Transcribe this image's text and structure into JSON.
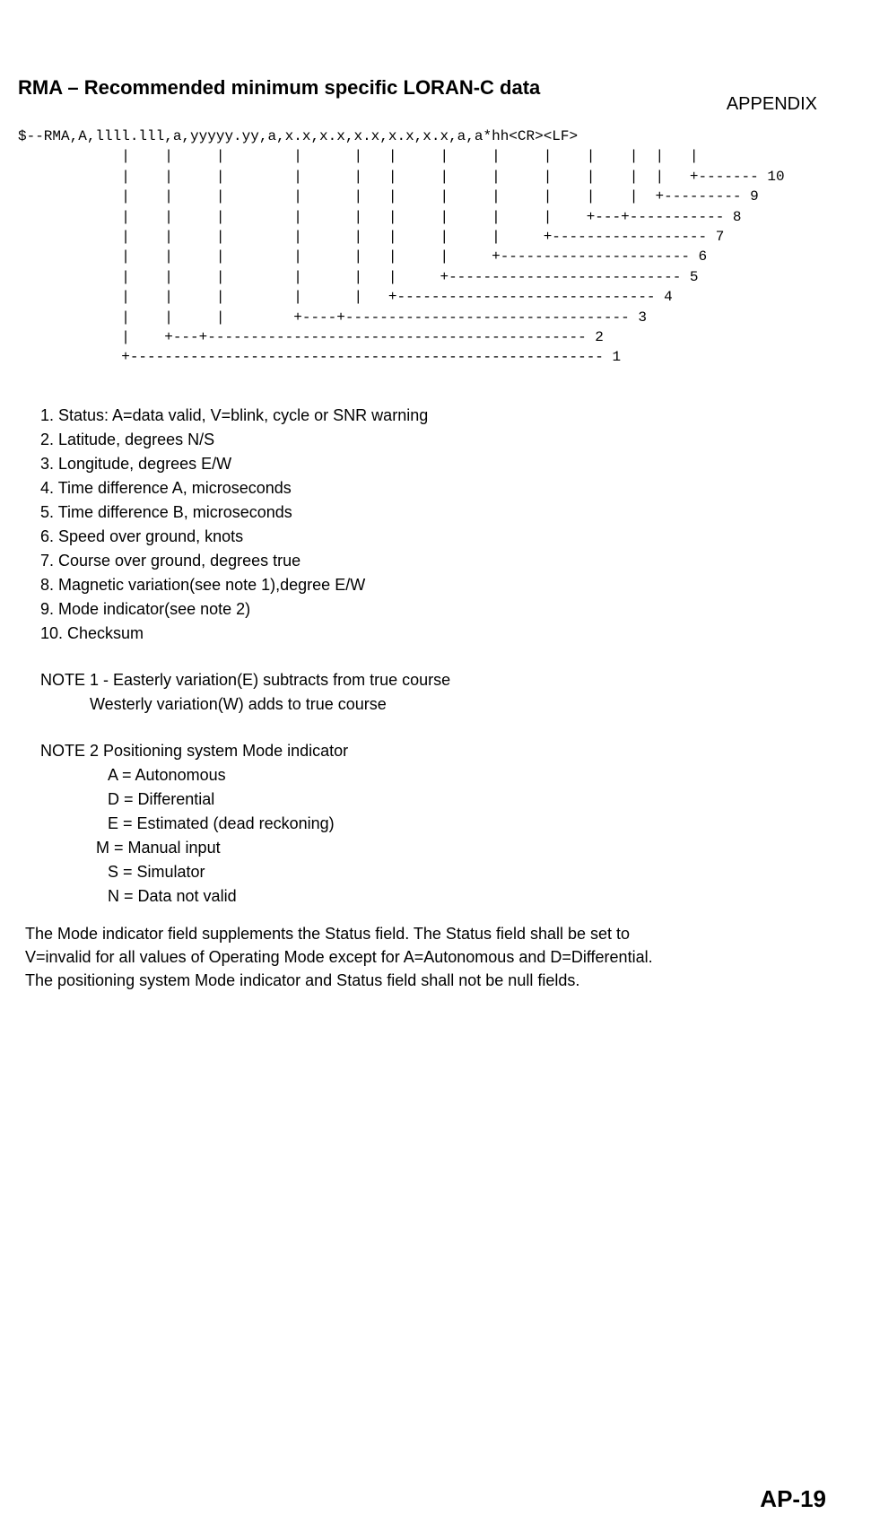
{
  "header": {
    "label": "APPENDIX"
  },
  "title": "RMA – Recommended minimum specific LORAN-C data",
  "sentence": "$--RMA,A,llll.lll,a,yyyyy.yy,a,x.x,x.x,x.x,x.x,x.x,a,a*hh<CR><LF>",
  "tree": {
    "l01": "            |    |     |        |      |   |     |     |     |    |    |  |   |",
    "l02": "            |    |     |        |      |   |     |     |     |    |    |  |   +------- 10",
    "l03": "            |    |     |        |      |   |     |     |     |    |    |  +--------- 9",
    "l04": "            |    |     |        |      |   |     |     |     |    +---+----------- 8",
    "l05": "            |    |     |        |      |   |     |     |     +------------------ 7",
    "l06": "            |    |     |        |      |   |     |     +---------------------- 6",
    "l07": "            |    |     |        |      |   |     +--------------------------- 5",
    "l08": "            |    |     |        |      |   +------------------------------ 4",
    "l09": "            |    |     |        +----+--------------------------------- 3",
    "l10": "            |    +---+-------------------------------------------- 2",
    "l11": "            +------------------------------------------------------- 1"
  },
  "fields": {
    "f1": "1. Status: A=data valid, V=blink, cycle or SNR warning",
    "f2": "2. Latitude, degrees N/S",
    "f3": "3. Longitude, degrees E/W",
    "f4": "4. Time difference A, microseconds",
    "f5": "5. Time difference B, microseconds",
    "f6": "6. Speed over ground, knots",
    "f7": "7. Course over ground, degrees true",
    "f8": "8. Magnetic variation(see note 1),degree E/W",
    "f9": "9. Mode indicator(see note 2)",
    "f10": "10. Checksum"
  },
  "note1": {
    "line1": "NOTE 1 - Easterly variation(E) subtracts from true course",
    "line2": "Westerly variation(W) adds to true course"
  },
  "note2": {
    "title": "NOTE 2  Positioning system Mode indicator",
    "a": "A = Autonomous",
    "d": "D = Differential",
    "e": "E = Estimated (dead reckoning)",
    "m": "M = Manual input",
    "s": "S = Simulator",
    "n": "N = Data not valid"
  },
  "paragraph": "The Mode indicator field supplements the Status field. The Status field shall be set to V=invalid for all values of Operating Mode except for A=Autonomous and D=Differential. The positioning system Mode indicator and Status field shall not be null fields.",
  "page_number": "AP-19"
}
